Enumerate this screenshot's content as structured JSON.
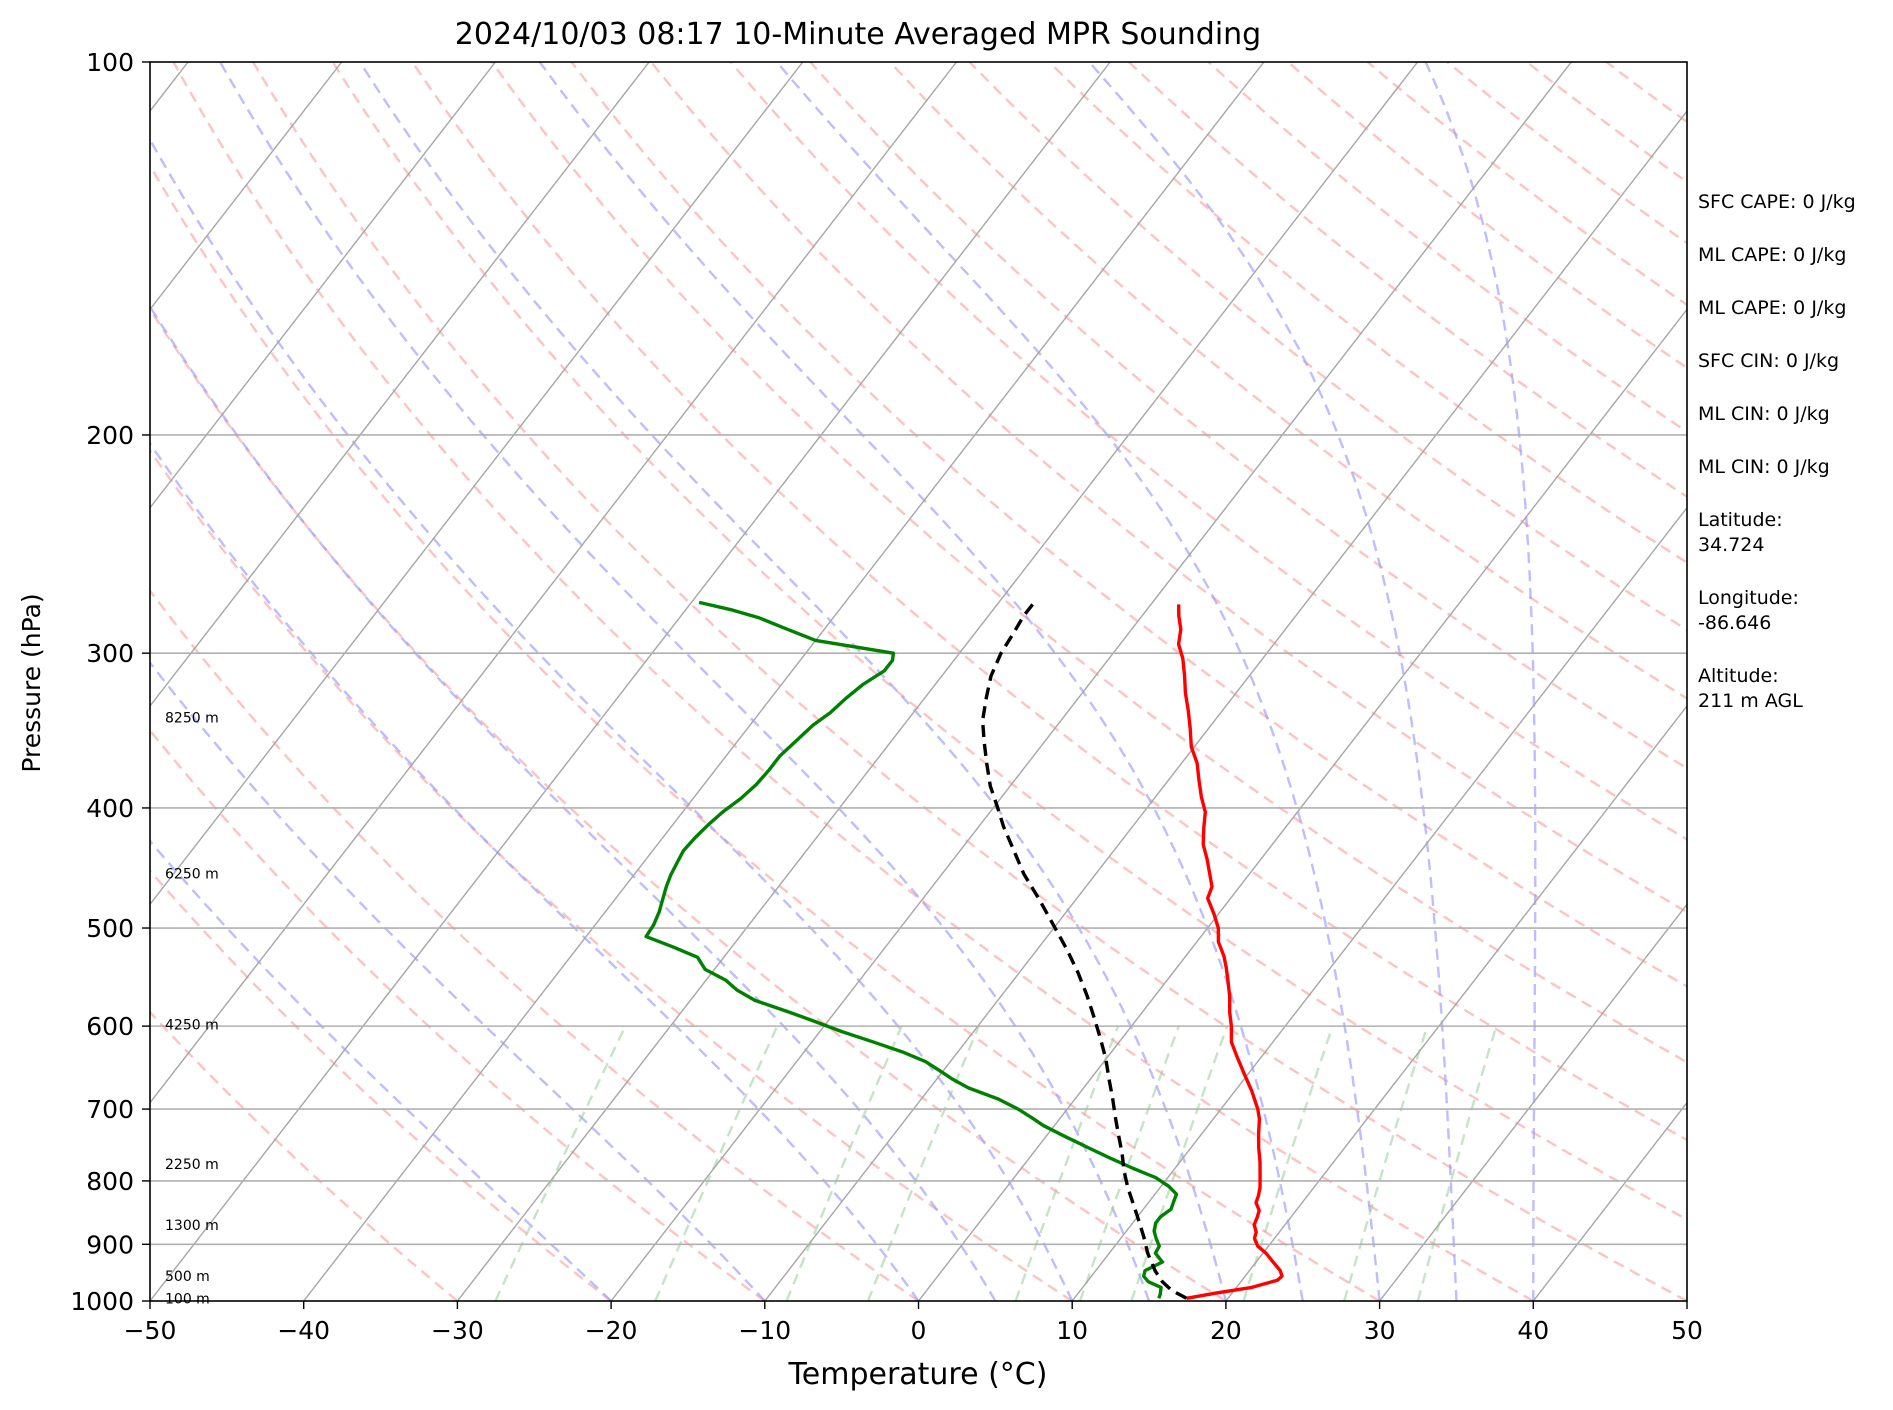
{
  "chart_data": {
    "type": "skew-t",
    "title": "2024/10/03 08:17 10-Minute Averaged MPR Sounding",
    "xlabel": "Temperature (°C)",
    "ylabel": "Pressure (hPa)",
    "xlim": [
      -50,
      50
    ],
    "ylim": [
      1000,
      100
    ],
    "y_scale": "log",
    "x_ticks": [
      -50,
      -40,
      -30,
      -20,
      -10,
      0,
      10,
      20,
      30,
      40,
      50
    ],
    "x_tick_labels": [
      "−50",
      "−40",
      "−30",
      "−20",
      "−10",
      "0",
      "10",
      "20",
      "30",
      "40",
      "50"
    ],
    "y_ticks": [
      1000,
      900,
      800,
      700,
      600,
      500,
      400,
      300,
      200,
      100
    ],
    "y_tick_labels": [
      "1000",
      "900",
      "800",
      "700",
      "600",
      "500",
      "400",
      "300",
      "200",
      "100"
    ],
    "grid": true,
    "height_labels": [
      {
        "pressure": 995,
        "text": "100 m"
      },
      {
        "pressure": 955,
        "text": "500 m"
      },
      {
        "pressure": 868,
        "text": "1300 m"
      },
      {
        "pressure": 775,
        "text": "2250 m"
      },
      {
        "pressure": 598,
        "text": "4250 m"
      },
      {
        "pressure": 452,
        "text": "6250 m"
      },
      {
        "pressure": 338,
        "text": "8250 m"
      }
    ],
    "series": [
      {
        "role": "temperature",
        "color": "#ff0000",
        "style": "solid",
        "points": [
          [
            17.3,
            995
          ],
          [
            19.0,
            985
          ],
          [
            21.0,
            975
          ],
          [
            22.3,
            962
          ],
          [
            22.4,
            955
          ],
          [
            22.0,
            945
          ],
          [
            21.1,
            930
          ],
          [
            20.2,
            915
          ],
          [
            19.3,
            903
          ],
          [
            18.7,
            890
          ],
          [
            18.5,
            880
          ],
          [
            18.0,
            868
          ],
          [
            17.8,
            855
          ],
          [
            17.6,
            845
          ],
          [
            17.0,
            833
          ],
          [
            16.8,
            822
          ],
          [
            16.5,
            810
          ],
          [
            16.0,
            795
          ],
          [
            15.2,
            772
          ],
          [
            14.4,
            752
          ],
          [
            13.7,
            733
          ],
          [
            13.0,
            713
          ],
          [
            12.4,
            700
          ],
          [
            11.1,
            677
          ],
          [
            9.7,
            655
          ],
          [
            8.4,
            635
          ],
          [
            7.3,
            618
          ],
          [
            6.5,
            600
          ],
          [
            5.7,
            585
          ],
          [
            4.9,
            568
          ],
          [
            3.9,
            550
          ],
          [
            3.2,
            538
          ],
          [
            2.5,
            527
          ],
          [
            1.4,
            513
          ],
          [
            0.7,
            500
          ],
          [
            -0.3,
            487
          ],
          [
            -1.5,
            473
          ],
          [
            -1.8,
            463
          ],
          [
            -2.6,
            452
          ],
          [
            -3.5,
            440
          ],
          [
            -4.5,
            428
          ],
          [
            -5.3,
            415
          ],
          [
            -6.0,
            403
          ],
          [
            -7.0,
            392
          ],
          [
            -8.0,
            380
          ],
          [
            -9.0,
            368
          ],
          [
            -10.2,
            357
          ],
          [
            -11.2,
            345
          ],
          [
            -12.2,
            334
          ],
          [
            -13.3,
            323
          ],
          [
            -14.2,
            313
          ],
          [
            -15.2,
            303
          ],
          [
            -16.2,
            295
          ],
          [
            -16.8,
            287
          ],
          [
            -17.6,
            280
          ],
          [
            -18.2,
            274
          ]
        ]
      },
      {
        "role": "dewpoint",
        "color": "#008000",
        "style": "solid",
        "points": [
          [
            15.5,
            995
          ],
          [
            15.4,
            988
          ],
          [
            15.1,
            975
          ],
          [
            14.0,
            965
          ],
          [
            13.4,
            955
          ],
          [
            13.2,
            945
          ],
          [
            13.9,
            930
          ],
          [
            13.0,
            915
          ],
          [
            12.9,
            903
          ],
          [
            12.3,
            890
          ],
          [
            11.8,
            878
          ],
          [
            11.5,
            865
          ],
          [
            11.5,
            855
          ],
          [
            11.8,
            843
          ],
          [
            11.6,
            832
          ],
          [
            11.4,
            820
          ],
          [
            10.5,
            808
          ],
          [
            9.2,
            795
          ],
          [
            7.2,
            781
          ],
          [
            5.3,
            767
          ],
          [
            3.3,
            752
          ],
          [
            1.3,
            737
          ],
          [
            -0.7,
            722
          ],
          [
            -1.8,
            712
          ],
          [
            -3.2,
            700
          ],
          [
            -5.0,
            687
          ],
          [
            -7.5,
            673
          ],
          [
            -9.0,
            662
          ],
          [
            -10.2,
            652
          ],
          [
            -11.6,
            641
          ],
          [
            -13.5,
            630
          ],
          [
            -16.2,
            617
          ],
          [
            -18.6,
            606
          ],
          [
            -20.8,
            595
          ],
          [
            -23.1,
            584
          ],
          [
            -25.8,
            572
          ],
          [
            -27.5,
            561
          ],
          [
            -28.7,
            551
          ],
          [
            -30.6,
            540
          ],
          [
            -31.7,
            528
          ],
          [
            -33.8,
            518
          ],
          [
            -36.1,
            508
          ],
          [
            -36.2,
            497
          ],
          [
            -36.5,
            485
          ],
          [
            -36.9,
            474
          ],
          [
            -37.3,
            463
          ],
          [
            -37.6,
            453
          ],
          [
            -37.8,
            443
          ],
          [
            -38.0,
            433
          ],
          [
            -37.9,
            423
          ],
          [
            -37.7,
            413
          ],
          [
            -37.4,
            403
          ],
          [
            -36.9,
            393
          ],
          [
            -36.6,
            383
          ],
          [
            -36.5,
            373
          ],
          [
            -36.5,
            363
          ],
          [
            -36.2,
            353
          ],
          [
            -35.9,
            343
          ],
          [
            -35.4,
            335
          ],
          [
            -35.1,
            326
          ],
          [
            -34.7,
            318
          ],
          [
            -34.0,
            310
          ],
          [
            -34.0,
            304
          ],
          [
            -34.3,
            300
          ],
          [
            -40.0,
            293
          ],
          [
            -42.4,
            287
          ],
          [
            -44.8,
            281
          ],
          [
            -46.9,
            277
          ],
          [
            -49.5,
            273
          ]
        ]
      },
      {
        "role": "parcel-profile",
        "color": "#000000",
        "style": "dashed",
        "points": [
          [
            17.3,
            995
          ],
          [
            15.9,
            980
          ],
          [
            14.9,
            965
          ],
          [
            13.9,
            946
          ],
          [
            12.5,
            915
          ],
          [
            11.4,
            887
          ],
          [
            10.0,
            855
          ],
          [
            8.8,
            829
          ],
          [
            7.9,
            810
          ],
          [
            6.8,
            785
          ],
          [
            5.8,
            760
          ],
          [
            4.8,
            738
          ],
          [
            3.6,
            712
          ],
          [
            2.4,
            686
          ],
          [
            1.2,
            662
          ],
          [
            0.0,
            638
          ],
          [
            -1.4,
            614
          ],
          [
            -2.9,
            590
          ],
          [
            -4.5,
            566
          ],
          [
            -6.2,
            543
          ],
          [
            -8.1,
            520
          ],
          [
            -10.2,
            497
          ],
          [
            -12.4,
            474
          ],
          [
            -14.7,
            452
          ],
          [
            -16.6,
            432
          ],
          [
            -18.4,
            414
          ],
          [
            -19.8,
            399
          ],
          [
            -21.3,
            384
          ],
          [
            -22.6,
            369
          ],
          [
            -23.9,
            354
          ],
          [
            -25.1,
            340
          ],
          [
            -26.0,
            326
          ],
          [
            -26.8,
            313
          ],
          [
            -27.3,
            300
          ],
          [
            -27.5,
            289
          ],
          [
            -27.7,
            280
          ],
          [
            -27.7,
            274
          ]
        ]
      }
    ],
    "reference_lines": {
      "isotherms": {
        "color": "#a6a6a6",
        "style": "solid",
        "spacing_C": 10
      },
      "dry_adiabats": {
        "color": "#ff9999",
        "style": "dashed"
      },
      "moist_adiabats": {
        "color": "#9999ff",
        "style": "dashed"
      },
      "mixing_ratio": {
        "color": "#99cc99",
        "style": "dashed"
      }
    }
  },
  "info_panel": [
    {
      "label": "SFC CAPE: 0 J/kg"
    },
    {
      "label": "ML CAPE: 0 J/kg"
    },
    {
      "label": "ML CAPE: 0 J/kg"
    },
    {
      "label": "SFC CIN: 0 J/kg"
    },
    {
      "label": "ML CIN: 0 J/kg"
    },
    {
      "label": "ML CIN: 0 J/kg"
    },
    {
      "label": "Latitude:",
      "value": "34.724"
    },
    {
      "label": "Longitude:",
      "value": "-86.646"
    },
    {
      "label": "Altitude:",
      "value": "211 m AGL"
    }
  ]
}
